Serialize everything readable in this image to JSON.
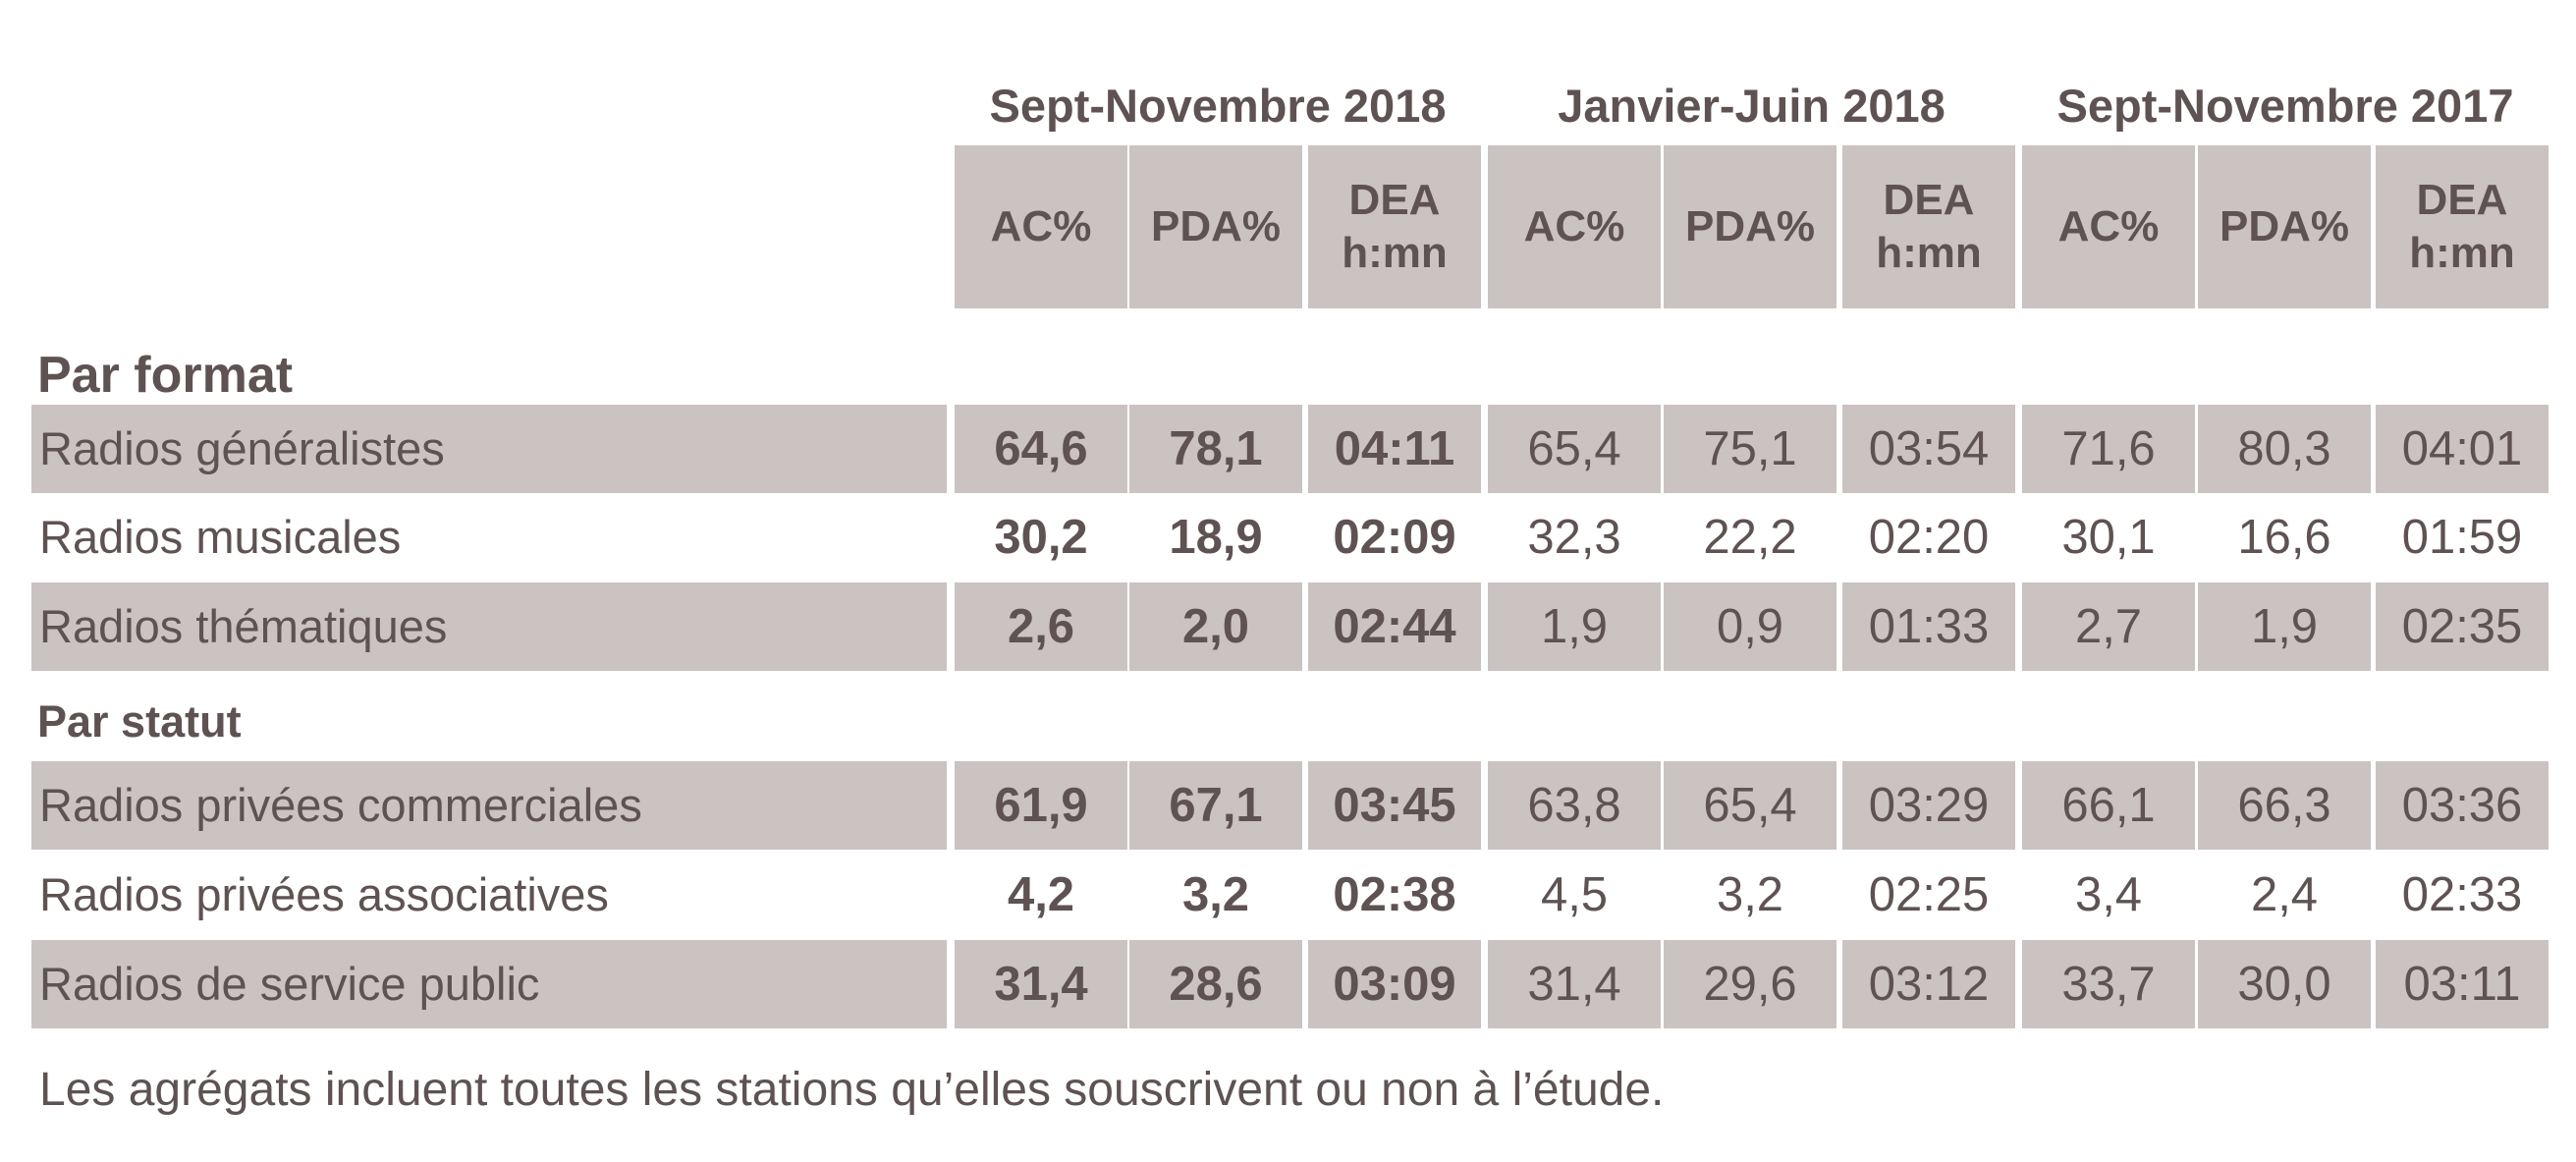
{
  "chart_data": {
    "type": "table",
    "period_groups": [
      "Sept-Novembre 2018",
      "Janvier-Juin 2018",
      "Sept-Novembre 2017"
    ],
    "columns": [
      "AC%",
      "PDA%",
      "DEA\nh:mn"
    ],
    "sections": [
      {
        "title": "Par format",
        "rows": [
          {
            "label": "Radios généralistes",
            "values": [
              "64,6",
              "78,1",
              "04:11",
              "65,4",
              "75,1",
              "03:54",
              "71,6",
              "80,3",
              "04:01"
            ]
          },
          {
            "label": "Radios musicales",
            "values": [
              "30,2",
              "18,9",
              "02:09",
              "32,3",
              "22,2",
              "02:20",
              "30,1",
              "16,6",
              "01:59"
            ]
          },
          {
            "label": "Radios thématiques",
            "values": [
              "2,6",
              "2,0",
              "02:44",
              "1,9",
              "0,9",
              "01:33",
              "2,7",
              "1,9",
              "02:35"
            ]
          }
        ]
      },
      {
        "title": "Par statut",
        "rows": [
          {
            "label": "Radios privées commerciales",
            "values": [
              "61,9",
              "67,1",
              "03:45",
              "63,8",
              "65,4",
              "03:29",
              "66,1",
              "66,3",
              "03:36"
            ]
          },
          {
            "label": "Radios privées associatives",
            "values": [
              "4,2",
              "3,2",
              "02:38",
              "4,5",
              "3,2",
              "02:25",
              "3,4",
              "2,4",
              "02:33"
            ]
          },
          {
            "label": "Radios de service public",
            "values": [
              "31,4",
              "28,6",
              "03:09",
              "31,4",
              "29,6",
              "03:12",
              "33,7",
              "30,0",
              "03:11"
            ]
          }
        ]
      }
    ],
    "footnote": "Les agrégats incluent toutes les stations qu’elles souscrivent ou non à l’étude."
  },
  "colors": {
    "text": "#5e5352",
    "shade": "#cbc2c2",
    "background": "#ffffff"
  }
}
